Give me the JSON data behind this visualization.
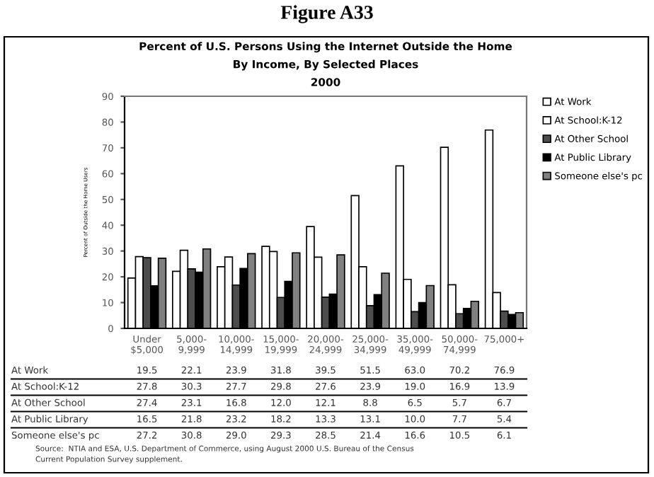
{
  "chart_data": {
    "type": "bar",
    "title": "Figure A33",
    "subtitle": "Percent of U.S. Persons Using the Internet Outside the Home\nBy Income, By Selected Places\n2000",
    "ylabel": "Percent of Outside the Home Users",
    "categories": [
      "Under\n$5,000",
      "5,000-\n9,999",
      "10,000-\n14,999",
      "15,000-\n19,999",
      "20,000-\n24,999",
      "25,000-\n34,999",
      "35,000-\n49,999",
      "50,000-\n74,999",
      "75,000+"
    ],
    "series": [
      {
        "name": "At Work",
        "color": "#ffffff",
        "values": [
          19.5,
          22.1,
          23.9,
          31.8,
          39.5,
          51.5,
          63.0,
          70.2,
          76.9
        ],
        "value_labels": [
          "19.5",
          "22.1",
          "23.9",
          "31.8",
          "39.5",
          "51.5",
          "63.0",
          "70.2",
          "76.9"
        ]
      },
      {
        "name": "At School:K-12",
        "color": "#ffffff",
        "values": [
          27.8,
          30.3,
          27.7,
          29.8,
          27.6,
          23.9,
          19.0,
          16.9,
          13.9
        ],
        "value_labels": [
          "27.8",
          "30.3",
          "27.7",
          "29.8",
          "27.6",
          "23.9",
          "19.0",
          "16.9",
          "13.9"
        ]
      },
      {
        "name": "At Other School",
        "color": "#4d4d4d",
        "values": [
          27.4,
          23.1,
          16.8,
          12.0,
          12.1,
          8.8,
          6.5,
          5.7,
          6.7
        ],
        "value_labels": [
          "27.4",
          "23.1",
          "16.8",
          "12.0",
          "12.1",
          "8.8",
          "6.5",
          "5.7",
          "6.7"
        ]
      },
      {
        "name": "At Public Library",
        "color": "#000000",
        "values": [
          16.5,
          21.8,
          23.2,
          18.2,
          13.3,
          13.1,
          10.0,
          7.7,
          5.4
        ],
        "value_labels": [
          "16.5",
          "21.8",
          "23.2",
          "18.2",
          "13.3",
          "13.1",
          "10.0",
          "7.7",
          "5.4"
        ]
      },
      {
        "name": "Someone else's pc",
        "color": "#808080",
        "values": [
          27.2,
          30.8,
          29.0,
          29.3,
          28.5,
          21.4,
          16.6,
          10.5,
          6.1
        ],
        "value_labels": [
          "27.2",
          "30.8",
          "29.0",
          "29.3",
          "28.5",
          "21.4",
          "16.6",
          "10.5",
          "6.1"
        ]
      }
    ],
    "ylim": [
      0,
      90
    ],
    "yticks": [
      0,
      10,
      20,
      30,
      40,
      50,
      60,
      70,
      80,
      90
    ],
    "grid": false,
    "legend": "top right",
    "annotations": [
      "Source:  NTIA and ESA, U.S. Department of Commerce, using August 2000 U.S. Bureau of the Census\nCurrent Population Survey supplement."
    ]
  }
}
